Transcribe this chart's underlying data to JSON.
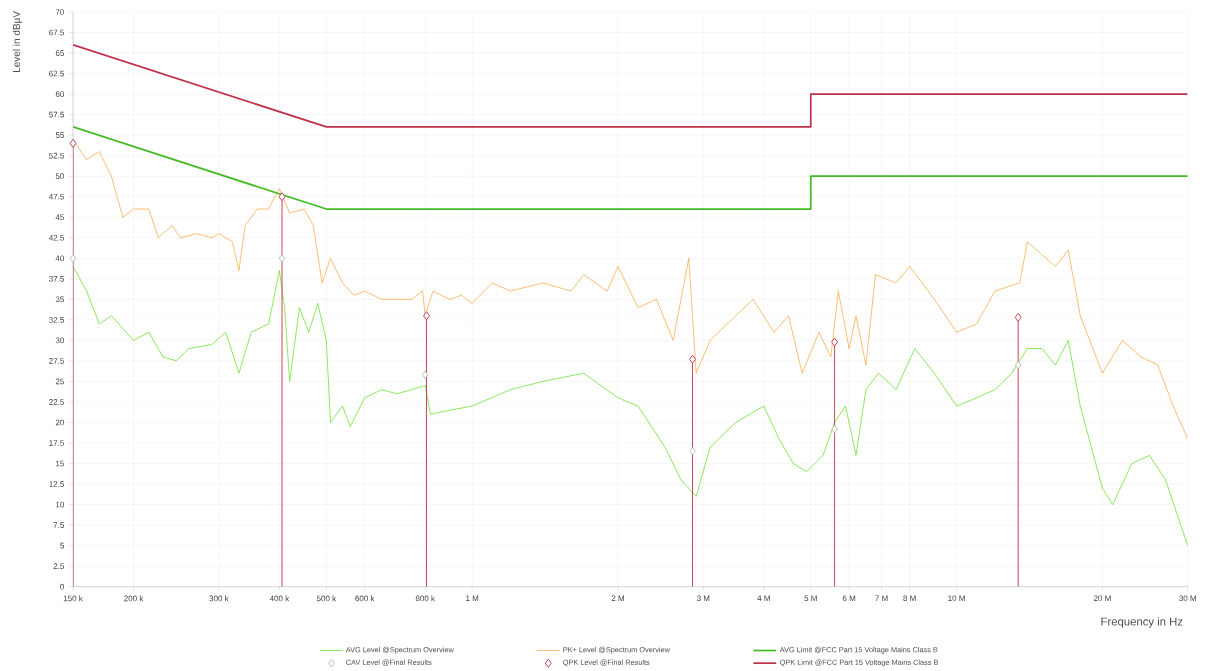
{
  "chart_data": {
    "type": "line",
    "xlabel": "Frequency in Hz",
    "ylabel": "Level in dBµV",
    "log": "x",
    "grid": true,
    "legend": "bottom",
    "xlim": [
      150000,
      30000000
    ],
    "ylim": [
      0,
      70
    ],
    "xticks": [
      {
        "value": 150000,
        "label": "150 k"
      },
      {
        "value": 200000,
        "label": "200 k"
      },
      {
        "value": 300000,
        "label": "300 k"
      },
      {
        "value": 400000,
        "label": "400 k"
      },
      {
        "value": 500000,
        "label": "500 k"
      },
      {
        "value": 600000,
        "label": "600 k"
      },
      {
        "value": 800000,
        "label": "800 k"
      },
      {
        "value": 1000000,
        "label": "1 M"
      },
      {
        "value": 2000000,
        "label": "2 M"
      },
      {
        "value": 3000000,
        "label": "3 M"
      },
      {
        "value": 4000000,
        "label": "4 M"
      },
      {
        "value": 5000000,
        "label": "5 M"
      },
      {
        "value": 6000000,
        "label": "6 M"
      },
      {
        "value": 7000000,
        "label": "7 M"
      },
      {
        "value": 8000000,
        "label": "8 M"
      },
      {
        "value": 10000000,
        "label": "10 M"
      },
      {
        "value": 20000000,
        "label": "20 M"
      },
      {
        "value": 30000000,
        "label": "30 M"
      }
    ],
    "yticks": [
      0,
      2.5,
      5,
      7.5,
      10,
      12.5,
      15,
      17.5,
      20,
      22.5,
      25,
      27.5,
      30,
      32.5,
      35,
      37.5,
      40,
      42.5,
      45,
      47.5,
      50,
      52.5,
      55,
      57.5,
      60,
      62.5,
      65,
      67.5,
      70
    ],
    "series": [
      {
        "name": "AVG Level @Spectrum Overview",
        "color": "#55dd11",
        "x": [
          150000,
          160000,
          170000,
          180000,
          200000,
          215000,
          230000,
          245000,
          260000,
          290000,
          310000,
          330000,
          350000,
          380000,
          400000,
          410000,
          420000,
          440000,
          460000,
          480000,
          500000,
          510000,
          540000,
          560000,
          600000,
          650000,
          700000,
          750000,
          800000,
          820000,
          900000,
          1000000,
          1200000,
          1400000,
          1700000,
          2000000,
          2200000,
          2500000,
          2700000,
          2900000,
          3100000,
          3500000,
          4000000,
          4300000,
          4600000,
          4900000,
          5300000,
          5600000,
          5900000,
          6200000,
          6500000,
          6900000,
          7500000,
          8200000,
          9000000,
          10000000,
          11000000,
          12000000,
          13000000,
          14000000,
          15000000,
          16000000,
          17000000,
          18000000,
          20000000,
          21000000,
          23000000,
          25000000,
          27000000,
          30000000
        ],
        "values": [
          39,
          36,
          32,
          33,
          30,
          31,
          28,
          27.5,
          29,
          29.5,
          31,
          26,
          31,
          32,
          38.5,
          34,
          25,
          34,
          31,
          34.5,
          30,
          20,
          22,
          19.5,
          23,
          24,
          23.5,
          24,
          24.5,
          21,
          21.5,
          22,
          24,
          25,
          26,
          23,
          22,
          17,
          13,
          11,
          17,
          20,
          22,
          18,
          15,
          14,
          16,
          20,
          22,
          16,
          24,
          26,
          24,
          29,
          26,
          22,
          23,
          24,
          26,
          29,
          29,
          27,
          30,
          22,
          12,
          10,
          15,
          16,
          13,
          5
        ]
      },
      {
        "name": "PK+ Level @Spectrum Overview",
        "color": "#f5a030",
        "x": [
          150000,
          160000,
          170000,
          180000,
          190000,
          200000,
          215000,
          225000,
          240000,
          250000,
          270000,
          290000,
          300000,
          320000,
          330000,
          340000,
          360000,
          380000,
          400000,
          420000,
          450000,
          470000,
          490000,
          510000,
          540000,
          570000,
          600000,
          650000,
          700000,
          750000,
          790000,
          800000,
          830000,
          900000,
          950000,
          1000000,
          1100000,
          1200000,
          1400000,
          1600000,
          1700000,
          1900000,
          2000000,
          2200000,
          2400000,
          2600000,
          2800000,
          2900000,
          3100000,
          3500000,
          3800000,
          4200000,
          4500000,
          4800000,
          5200000,
          5500000,
          5700000,
          6000000,
          6200000,
          6500000,
          6800000,
          7500000,
          8000000,
          9000000,
          10000000,
          11000000,
          12000000,
          13500000,
          14000000,
          16000000,
          17000000,
          18000000,
          20000000,
          22000000,
          24000000,
          26000000,
          28000000,
          30000000
        ],
        "values": [
          54.5,
          52,
          53,
          50,
          45,
          46,
          46,
          42.5,
          44,
          42.5,
          43,
          42.5,
          43,
          42,
          38.5,
          44,
          46,
          46,
          48.5,
          45.5,
          46,
          44,
          37,
          40,
          37,
          35.5,
          36,
          35,
          35,
          35,
          36,
          33,
          36,
          35,
          35.5,
          34.5,
          37,
          36,
          37,
          36,
          38,
          36,
          39,
          34,
          35,
          30,
          40,
          26,
          30,
          33,
          35,
          31,
          33,
          26,
          31,
          28,
          36,
          29,
          33,
          27,
          38,
          37,
          39,
          35,
          31,
          32,
          36,
          37,
          42,
          39,
          41,
          33,
          26,
          30,
          28,
          27,
          22,
          18
        ]
      },
      {
        "name": "AVG Limit @FCC Part 15 Voltage Mains Class B",
        "color": "#44bb22",
        "x": [
          150000,
          500000,
          5000000,
          5000000,
          30000000
        ],
        "values": [
          56,
          46,
          46,
          50,
          50
        ]
      },
      {
        "name": "CAV Level @Final Results",
        "type": "scatter",
        "marker": "diamond",
        "color": "#a8b8a0",
        "x": [
          150000,
          405000,
          800000,
          2850000,
          5600000,
          13400000
        ],
        "values": [
          40,
          40,
          25.8,
          16.5,
          19.2,
          27
        ]
      },
      {
        "name": "QPK Level @Final Results",
        "type": "lollipop",
        "marker": "diamond",
        "color": "#c03848",
        "x": [
          150000,
          405000,
          805000,
          2850000,
          5600000,
          13400000
        ],
        "values": [
          54,
          47.5,
          33,
          27.7,
          29.8,
          32.8
        ]
      },
      {
        "name": "QPK Limit @FCC Part 15 Voltage Mains Class B",
        "color": "#c0304a",
        "x": [
          150000,
          500000,
          5000000,
          5000000,
          30000000
        ],
        "values": [
          66,
          56,
          56,
          60,
          60
        ]
      }
    ]
  }
}
